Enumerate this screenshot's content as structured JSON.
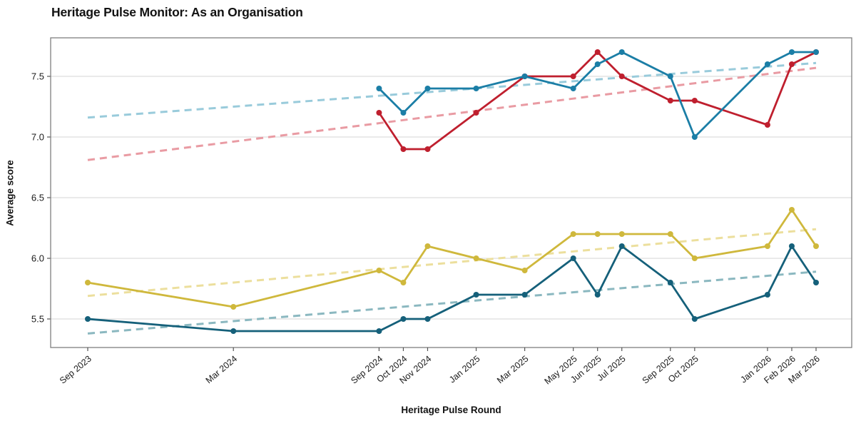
{
  "chart_data": {
    "type": "line",
    "title": "Heritage Pulse Monitor: As an Organisation",
    "xlabel": "Heritage Pulse Round",
    "ylabel": "Average score",
    "ylim": [
      5.27,
      7.82
    ],
    "grid": "horizontal-only",
    "legend": "none",
    "background": "#ffffff",
    "gridline_color": "#d6d6d6",
    "border_color": "#7f7f7f",
    "tick_text_color": "#1a1a1a",
    "categories": [
      "Sep 2023",
      "Mar 2024",
      "Sep 2024",
      "Oct 2024",
      "Nov 2024",
      "Jan 2025",
      "Mar 2025",
      "May 2025",
      "Jun 2025",
      "Jul 2025",
      "Sep 2025",
      "Oct 2025",
      "Jan 2026",
      "Feb 2026",
      "Mar 2026"
    ],
    "month_offsets": [
      0,
      6,
      12,
      13,
      14,
      16,
      18,
      20,
      21,
      22,
      24,
      25,
      28,
      29,
      30
    ],
    "ytick_labels": [
      "5.5",
      "6.0",
      "6.5",
      "7.0",
      "7.5"
    ],
    "ytick_values": [
      5.5,
      6.0,
      6.5,
      7.0,
      7.5
    ],
    "series": [
      {
        "name": "series-yellow",
        "color": "#cfb83c",
        "values": [
          5.8,
          5.6,
          5.9,
          5.8,
          6.1,
          6.0,
          5.9,
          6.2,
          6.2,
          6.2,
          6.2,
          6.0,
          6.1,
          6.4,
          6.1
        ]
      },
      {
        "name": "series-dark-teal",
        "color": "#15607a",
        "values": [
          5.5,
          5.4,
          5.4,
          5.5,
          5.5,
          5.7,
          5.7,
          6.0,
          5.7,
          6.1,
          5.8,
          5.5,
          5.7,
          6.1,
          5.8
        ]
      },
      {
        "name": "series-red",
        "color": "#bf1f2e",
        "values": [
          null,
          null,
          7.2,
          6.9,
          6.9,
          7.2,
          7.5,
          7.5,
          7.7,
          7.5,
          7.3,
          7.3,
          7.1,
          7.6,
          7.7
        ]
      },
      {
        "name": "series-teal-blue",
        "color": "#1b7ea6",
        "values": [
          null,
          null,
          7.4,
          7.2,
          7.4,
          7.4,
          7.5,
          7.4,
          7.6,
          7.7,
          7.5,
          7.0,
          7.6,
          7.7,
          7.7
        ]
      }
    ],
    "trendlines": [
      {
        "name": "trend-teal-blue",
        "color": "#99cbdb",
        "start": 7.16,
        "end": 7.61
      },
      {
        "name": "trend-red",
        "color": "#e99ba3",
        "start": 6.81,
        "end": 7.57
      },
      {
        "name": "trend-yellow",
        "color": "#ecdf9d",
        "start": 5.69,
        "end": 6.24
      },
      {
        "name": "trend-dark-teal",
        "color": "#8bb8c0",
        "start": 5.38,
        "end": 5.89
      }
    ]
  }
}
